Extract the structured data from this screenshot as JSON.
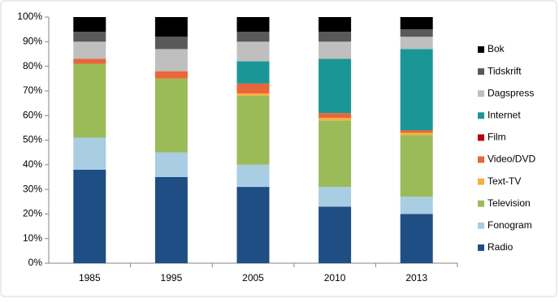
{
  "chart_data": {
    "type": "stacked-bar",
    "categories": [
      "1985",
      "1995",
      "2005",
      "2010",
      "2013"
    ],
    "series": [
      {
        "name": "Radio",
        "color": "#1f4e85",
        "values": [
          38,
          35,
          31,
          23,
          20
        ]
      },
      {
        "name": "Fonogram",
        "color": "#a9cde3",
        "values": [
          13,
          10,
          9,
          8,
          7
        ]
      },
      {
        "name": "Television",
        "color": "#9bbb59",
        "values": [
          30,
          30,
          28,
          27,
          25
        ]
      },
      {
        "name": "Text-TV",
        "color": "#f6b042",
        "values": [
          0,
          0,
          1,
          1,
          1
        ]
      },
      {
        "name": "Video/DVD",
        "color": "#e8663a",
        "values": [
          2,
          3,
          4,
          2,
          1
        ]
      },
      {
        "name": "Film",
        "color": "#c00000",
        "values": [
          0,
          0,
          0,
          0,
          0
        ]
      },
      {
        "name": "Internet",
        "color": "#1a9696",
        "values": [
          0,
          0,
          9,
          22,
          33
        ]
      },
      {
        "name": "Dagspress",
        "color": "#bfbfbf",
        "values": [
          7,
          9,
          8,
          7,
          5
        ]
      },
      {
        "name": "Tidskrift",
        "color": "#595959",
        "values": [
          4,
          5,
          4,
          4,
          3
        ]
      },
      {
        "name": "Bok",
        "color": "#000000",
        "values": [
          6,
          8,
          6,
          6,
          5
        ]
      }
    ],
    "ylim": [
      0,
      100
    ],
    "yticks": [
      {
        "value": 0,
        "label": "0%"
      },
      {
        "value": 10,
        "label": "10%"
      },
      {
        "value": 20,
        "label": "20%"
      },
      {
        "value": 30,
        "label": "30%"
      },
      {
        "value": 40,
        "label": "40%"
      },
      {
        "value": 50,
        "label": "50%"
      },
      {
        "value": 60,
        "label": "60%"
      },
      {
        "value": 70,
        "label": "70%"
      },
      {
        "value": 80,
        "label": "80%"
      },
      {
        "value": 90,
        "label": "90%"
      },
      {
        "value": 100,
        "label": "100%"
      }
    ],
    "legend": "right"
  }
}
